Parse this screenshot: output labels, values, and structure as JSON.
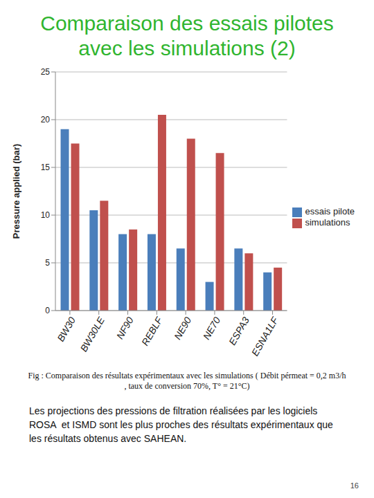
{
  "chart_data": {
    "type": "bar",
    "title": "Comparaison des essais pilotes avec les simulations (2)",
    "y_label": "Pressure applied (bar)",
    "categories": [
      "BW30",
      "BW30LE",
      "NF90",
      "REBLF",
      "NE90",
      "NE70",
      "ESPA3",
      "ESNA1LF"
    ],
    "series": [
      {
        "name": "essais pilote",
        "color": "#4a7ebb",
        "values": [
          19,
          10.5,
          8,
          8,
          6.5,
          3,
          6.5,
          4
        ]
      },
      {
        "name": "simulations",
        "color": "#c0504d",
        "values": [
          17.5,
          11.5,
          8.5,
          20.5,
          18,
          16.5,
          6,
          4.5
        ]
      }
    ],
    "ylim": [
      0,
      25
    ],
    "yticks": [
      0,
      5,
      10,
      15,
      20,
      25
    ],
    "grid": true,
    "legend": "right",
    "annotations": [
      "Fig : Comparaison des résultats expérimentaux avec les simulations ( Débit pérmeat = 0,2 m3/h , taux de conversion 70%, T° = 21°C)",
      "Les projections des pressions de filtration réalisées par les logiciels ROSA  et ISMD sont les plus proches des résultats expérimentaux que les résultats obtenus avec SAHEAN.",
      "16"
    ]
  }
}
